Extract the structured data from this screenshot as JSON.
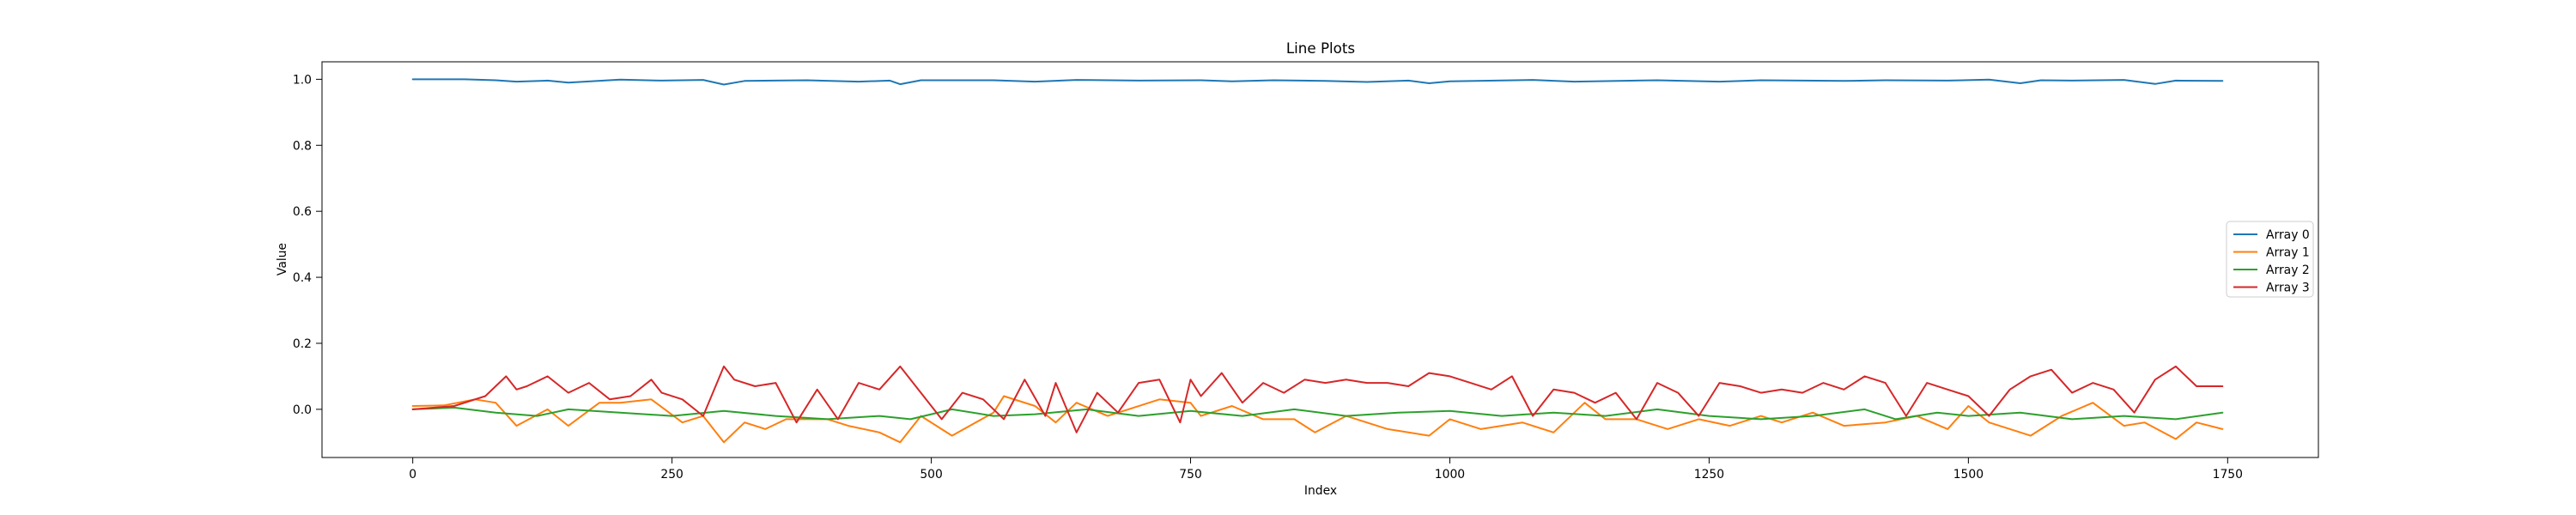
{
  "chart_data": {
    "type": "line",
    "title": "Line Plots",
    "xlabel": "Index",
    "ylabel": "Value",
    "xlim": [
      -87.5,
      1837.5
    ],
    "ylim": [
      -0.146,
      1.053
    ],
    "xticks": [
      0,
      250,
      500,
      750,
      1000,
      1250,
      1500,
      1750
    ],
    "yticks": [
      0.0,
      0.2,
      0.4,
      0.6,
      0.8,
      1.0
    ],
    "ytick_labels": [
      "0.0",
      "0.2",
      "0.4",
      "0.6",
      "0.8",
      "1.0"
    ],
    "grid": false,
    "legend_position": "center right",
    "colors": [
      "#1f77b4",
      "#ff7f0e",
      "#2ca02c",
      "#d62728"
    ],
    "series": [
      {
        "name": "Array 0",
        "x": [
          0,
          50,
          80,
          100,
          130,
          150,
          200,
          240,
          280,
          300,
          320,
          380,
          430,
          460,
          470,
          490,
          560,
          600,
          640,
          700,
          760,
          790,
          830,
          880,
          920,
          960,
          980,
          1000,
          1080,
          1120,
          1200,
          1260,
          1300,
          1380,
          1420,
          1480,
          1520,
          1550,
          1570,
          1600,
          1650,
          1680,
          1700,
          1745
        ],
        "y": [
          1.0,
          1.0,
          0.997,
          0.993,
          0.996,
          0.99,
          0.999,
          0.996,
          0.998,
          0.984,
          0.995,
          0.997,
          0.993,
          0.996,
          0.985,
          0.997,
          0.997,
          0.993,
          0.998,
          0.996,
          0.997,
          0.994,
          0.997,
          0.995,
          0.992,
          0.996,
          0.988,
          0.994,
          0.998,
          0.993,
          0.997,
          0.993,
          0.997,
          0.995,
          0.997,
          0.996,
          0.999,
          0.988,
          0.997,
          0.996,
          0.998,
          0.986,
          0.996,
          0.995
        ]
      },
      {
        "name": "Array 1",
        "x": [
          0,
          30,
          60,
          80,
          100,
          130,
          150,
          180,
          200,
          230,
          260,
          280,
          300,
          320,
          340,
          360,
          400,
          420,
          450,
          470,
          490,
          520,
          560,
          570,
          600,
          620,
          640,
          670,
          690,
          720,
          750,
          760,
          790,
          820,
          850,
          870,
          900,
          940,
          980,
          1000,
          1030,
          1070,
          1100,
          1130,
          1150,
          1180,
          1210,
          1240,
          1270,
          1300,
          1320,
          1350,
          1380,
          1420,
          1450,
          1480,
          1500,
          1520,
          1560,
          1590,
          1620,
          1650,
          1670,
          1700,
          1720,
          1745
        ],
        "y": [
          0.01,
          0.012,
          0.03,
          0.02,
          -0.05,
          0.0,
          -0.05,
          0.02,
          0.02,
          0.03,
          -0.04,
          -0.02,
          -0.1,
          -0.04,
          -0.06,
          -0.03,
          -0.03,
          -0.05,
          -0.07,
          -0.1,
          -0.02,
          -0.08,
          -0.01,
          0.04,
          0.01,
          -0.04,
          0.02,
          -0.02,
          0.0,
          0.03,
          0.02,
          -0.02,
          0.01,
          -0.03,
          -0.03,
          -0.07,
          -0.02,
          -0.06,
          -0.08,
          -0.03,
          -0.06,
          -0.04,
          -0.07,
          0.02,
          -0.03,
          -0.03,
          -0.06,
          -0.03,
          -0.05,
          -0.02,
          -0.04,
          -0.01,
          -0.05,
          -0.04,
          -0.02,
          -0.06,
          0.01,
          -0.04,
          -0.08,
          -0.02,
          0.02,
          -0.05,
          -0.04,
          -0.09,
          -0.04,
          -0.06
        ]
      },
      {
        "name": "Array 2",
        "x": [
          0,
          40,
          80,
          120,
          150,
          200,
          250,
          300,
          350,
          400,
          450,
          480,
          520,
          560,
          600,
          650,
          700,
          750,
          800,
          850,
          900,
          950,
          1000,
          1050,
          1100,
          1150,
          1200,
          1250,
          1300,
          1350,
          1400,
          1430,
          1470,
          1500,
          1550,
          1600,
          1650,
          1700,
          1745
        ],
        "y": [
          0.0,
          0.005,
          -0.01,
          -0.02,
          0.0,
          -0.01,
          -0.02,
          -0.005,
          -0.02,
          -0.03,
          -0.02,
          -0.03,
          0.0,
          -0.02,
          -0.015,
          0.0,
          -0.02,
          -0.005,
          -0.02,
          0.0,
          -0.02,
          -0.01,
          -0.005,
          -0.02,
          -0.01,
          -0.02,
          0.0,
          -0.02,
          -0.03,
          -0.02,
          0.0,
          -0.03,
          -0.01,
          -0.02,
          -0.01,
          -0.03,
          -0.02,
          -0.03,
          -0.01
        ]
      },
      {
        "name": "Array 3",
        "x": [
          0,
          40,
          70,
          90,
          100,
          110,
          130,
          150,
          170,
          190,
          210,
          230,
          240,
          260,
          280,
          300,
          310,
          330,
          350,
          370,
          390,
          410,
          430,
          450,
          470,
          490,
          510,
          530,
          550,
          570,
          590,
          610,
          620,
          640,
          660,
          680,
          700,
          720,
          740,
          750,
          760,
          780,
          800,
          820,
          840,
          860,
          880,
          900,
          920,
          940,
          960,
          980,
          1000,
          1020,
          1040,
          1060,
          1080,
          1100,
          1120,
          1140,
          1160,
          1180,
          1200,
          1220,
          1240,
          1260,
          1280,
          1300,
          1320,
          1340,
          1360,
          1380,
          1400,
          1420,
          1440,
          1460,
          1480,
          1500,
          1520,
          1540,
          1560,
          1580,
          1600,
          1620,
          1640,
          1660,
          1680,
          1700,
          1720,
          1745
        ],
        "y": [
          0.0,
          0.01,
          0.04,
          0.1,
          0.06,
          0.07,
          0.1,
          0.05,
          0.08,
          0.03,
          0.04,
          0.09,
          0.05,
          0.03,
          -0.02,
          0.13,
          0.09,
          0.07,
          0.08,
          -0.04,
          0.06,
          -0.03,
          0.08,
          0.06,
          0.13,
          0.05,
          -0.03,
          0.05,
          0.03,
          -0.03,
          0.09,
          -0.02,
          0.08,
          -0.07,
          0.05,
          -0.01,
          0.08,
          0.09,
          -0.04,
          0.09,
          0.04,
          0.11,
          0.02,
          0.08,
          0.05,
          0.09,
          0.08,
          0.09,
          0.08,
          0.08,
          0.07,
          0.11,
          0.1,
          0.08,
          0.06,
          0.1,
          -0.02,
          0.06,
          0.05,
          0.02,
          0.05,
          -0.03,
          0.08,
          0.05,
          -0.02,
          0.08,
          0.07,
          0.05,
          0.06,
          0.05,
          0.08,
          0.06,
          0.1,
          0.08,
          -0.02,
          0.08,
          0.06,
          0.04,
          -0.02,
          0.06,
          0.1,
          0.12,
          0.05,
          0.08,
          0.06,
          -0.01,
          0.09,
          0.13,
          0.07,
          0.07
        ]
      }
    ]
  }
}
